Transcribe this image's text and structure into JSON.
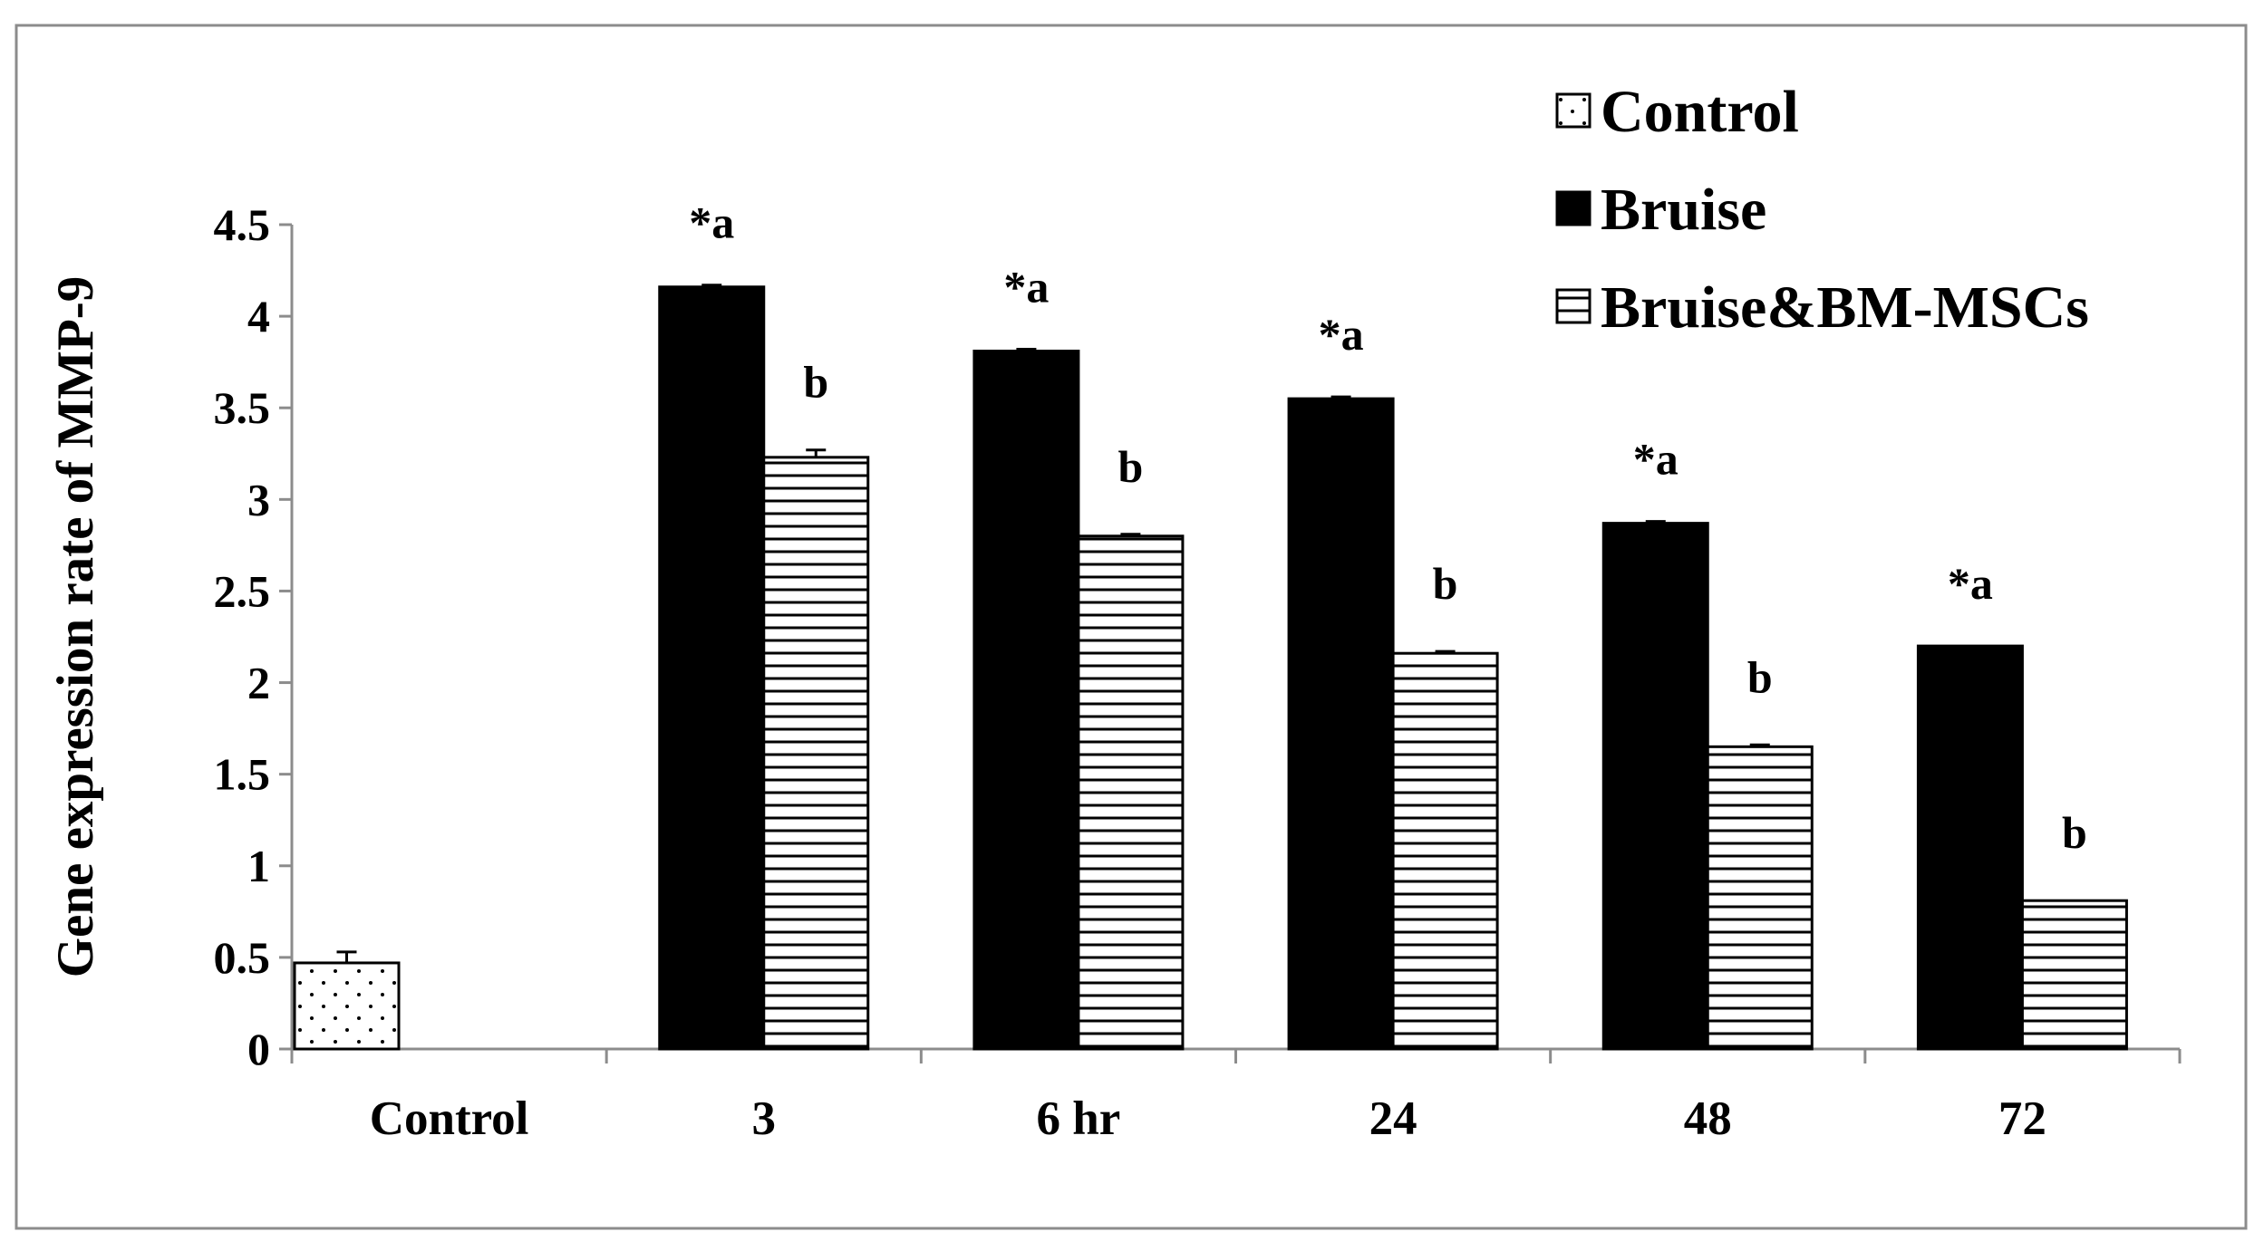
{
  "chart_data": {
    "type": "bar",
    "ylabel": "Gene expression rate of MMP-9",
    "xlabel": "",
    "ylim": [
      0,
      4.5
    ],
    "yticks": [
      "0",
      "0.5",
      "1",
      "1.5",
      "2",
      "2.5",
      "3",
      "3.5",
      "4",
      "4.5"
    ],
    "legend_position": "top-right",
    "categories": [
      "Control",
      "3",
      "6 hr",
      "24",
      "48",
      "72"
    ],
    "series": [
      {
        "name": "Control",
        "pattern": "dots",
        "fill": "#ffffff",
        "values": [
          0.47,
          null,
          null,
          null,
          null,
          null
        ],
        "errors": [
          0.06,
          null,
          null,
          null,
          null,
          null
        ],
        "annotations": [
          "",
          "",
          "",
          "",
          "",
          ""
        ]
      },
      {
        "name": "Bruise",
        "pattern": "solid",
        "fill": "#000000",
        "values": [
          null,
          4.16,
          3.81,
          3.55,
          2.87,
          2.2
        ],
        "errors": [
          null,
          0.01,
          0.01,
          0.01,
          0.01,
          0.0
        ],
        "annotations": [
          "",
          "*a",
          "*a",
          "*a",
          "*a",
          "*a"
        ]
      },
      {
        "name": "Bruise&BM-MSCs",
        "pattern": "horizontal-lines",
        "fill": "#ffffff",
        "values": [
          null,
          3.23,
          2.8,
          2.16,
          1.65,
          0.81
        ],
        "errors": [
          null,
          0.04,
          0.01,
          0.01,
          0.01,
          0.0
        ],
        "annotations": [
          "",
          "b",
          "b",
          "b",
          "b",
          "b"
        ]
      }
    ]
  }
}
